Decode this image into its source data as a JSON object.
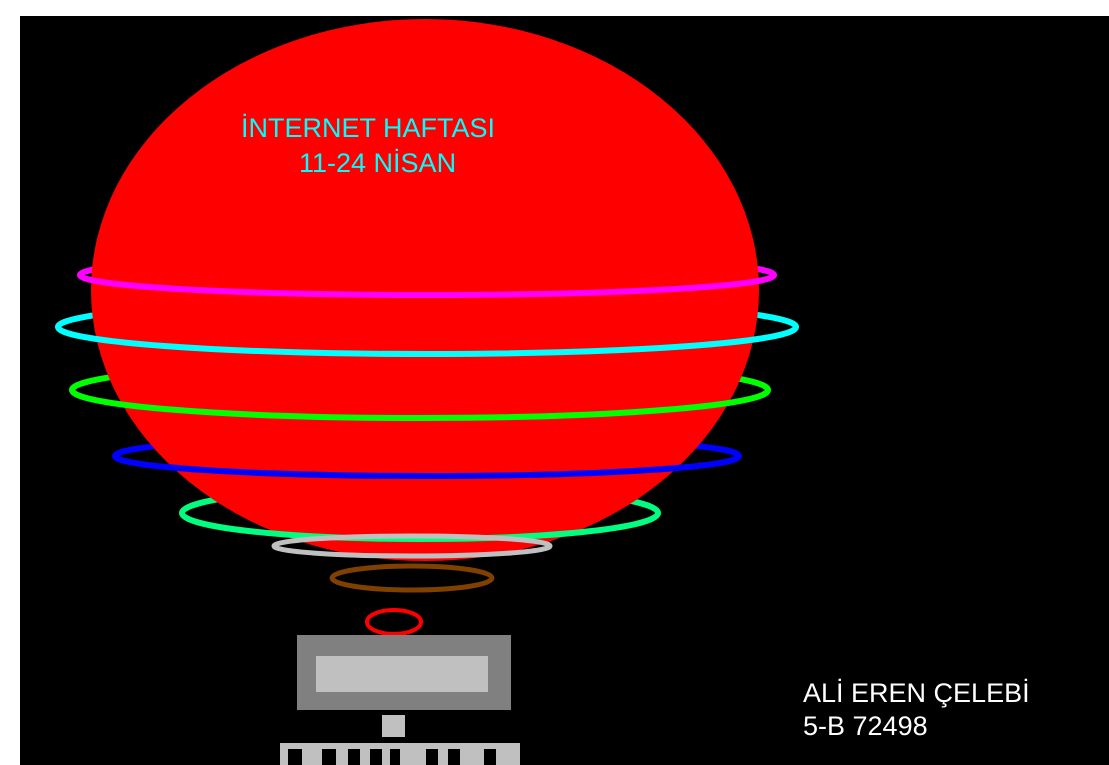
{
  "heading": {
    "line1": "İNTERNET HAFTASI",
    "line2": "11-24 NİSAN"
  },
  "signature": {
    "name": "ALİ EREN ÇELEBİ",
    "class_no": "5-B 72498"
  },
  "colors": {
    "background": "#000000",
    "globe": "#ff0000",
    "heading_text": "#00ffff",
    "signature_text": "#ffffff",
    "rings": [
      "#ff00ff",
      "#00ffff",
      "#00ff00",
      "#0000ff",
      "#00ff80",
      "#c0c0c0",
      "#804000",
      "#ff0000"
    ],
    "device_frame": "#808080",
    "device_screen": "#c0c0c0"
  }
}
